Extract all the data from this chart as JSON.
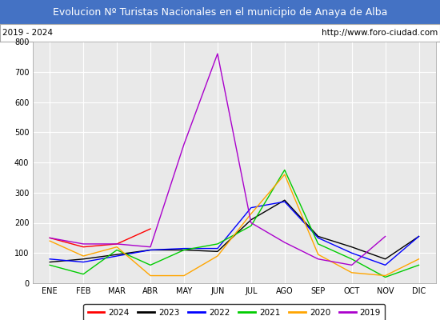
{
  "title": "Evolucion Nº Turistas Nacionales en el municipio de Anaya de Alba",
  "subtitle_left": "2019 - 2024",
  "subtitle_right": "http://www.foro-ciudad.com",
  "title_bg_color": "#4472c4",
  "title_text_color": "#ffffff",
  "subtitle_bg_color": "#ffffff",
  "subtitle_text_color": "#000000",
  "plot_bg_color": "#e9e9e9",
  "months": [
    "ENE",
    "FEB",
    "MAR",
    "ABR",
    "MAY",
    "JUN",
    "JUL",
    "AGO",
    "SEP",
    "OCT",
    "NOV",
    "DIC"
  ],
  "ylim": [
    0,
    800
  ],
  "yticks": [
    0,
    100,
    200,
    300,
    400,
    500,
    600,
    700,
    800
  ],
  "series": {
    "2024": {
      "color": "#ff0000",
      "data": [
        150,
        120,
        130,
        180,
        null,
        null,
        null,
        null,
        null,
        null,
        null,
        null
      ]
    },
    "2023": {
      "color": "#000000",
      "data": [
        70,
        80,
        95,
        110,
        110,
        105,
        210,
        275,
        155,
        120,
        80,
        155
      ]
    },
    "2022": {
      "color": "#0000ff",
      "data": [
        80,
        70,
        90,
        110,
        115,
        115,
        250,
        270,
        150,
        100,
        60,
        155
      ]
    },
    "2021": {
      "color": "#00cc00",
      "data": [
        60,
        30,
        110,
        60,
        110,
        130,
        190,
        375,
        130,
        80,
        20,
        60
      ]
    },
    "2020": {
      "color": "#ffa500",
      "data": [
        140,
        90,
        120,
        25,
        25,
        90,
        230,
        360,
        95,
        35,
        25,
        80
      ]
    },
    "2019": {
      "color": "#aa00cc",
      "data": [
        150,
        130,
        130,
        120,
        460,
        760,
        200,
        135,
        80,
        60,
        155,
        null
      ]
    }
  },
  "legend_order": [
    "2024",
    "2023",
    "2022",
    "2021",
    "2020",
    "2019"
  ],
  "grid_color": "#ffffff",
  "border_color": "#4472c4",
  "outer_bg": "#ffffff"
}
